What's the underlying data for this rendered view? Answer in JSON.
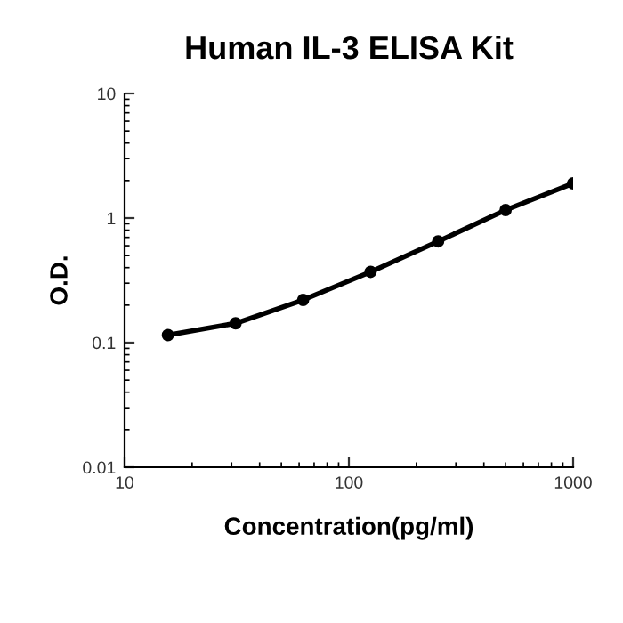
{
  "chart_data": {
    "type": "line",
    "title": "Human IL-3 ELISA Kit",
    "xlabel": "Concentration(pg/ml)",
    "ylabel": "O.D.",
    "x": [
      15.6,
      31.25,
      62.5,
      125,
      250,
      500,
      1000
    ],
    "series": [
      {
        "color": "#000000",
        "values": [
          0.115,
          0.143,
          0.22,
          0.37,
          0.65,
          1.16,
          1.9
        ]
      }
    ],
    "log": "xy",
    "xlim": [
      10,
      1000
    ],
    "ylim": [
      0.01,
      10
    ],
    "xticks": [
      10,
      100,
      1000
    ],
    "yticks": [
      0.01,
      0.1,
      1,
      10
    ],
    "marker": "circle",
    "line_style": "solid",
    "grid": false,
    "legend": false
  }
}
